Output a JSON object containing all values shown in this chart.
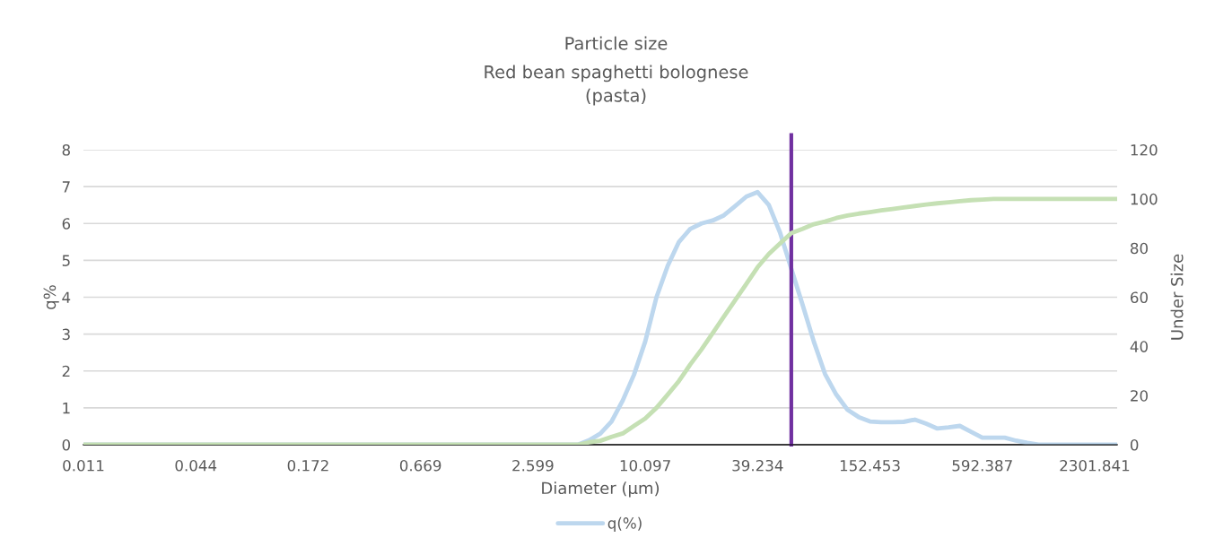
{
  "chart_data": {
    "type": "line",
    "title": "Particle size",
    "subtitle": "Red bean spaghetti bolognese\n(pasta)",
    "xlabel": "Diameter (µm)",
    "ylabel": "q%",
    "y2label": "Under Size",
    "categories": [
      "0.011",
      null,
      null,
      null,
      null,
      null,
      null,
      null,
      null,
      null,
      "0.044",
      null,
      null,
      null,
      null,
      null,
      null,
      null,
      null,
      null,
      "0.172",
      null,
      null,
      null,
      null,
      null,
      null,
      null,
      null,
      null,
      "0.669",
      null,
      null,
      null,
      null,
      null,
      null,
      null,
      null,
      null,
      "2.599",
      null,
      null,
      null,
      null,
      null,
      null,
      null,
      null,
      null,
      "10.097",
      null,
      null,
      null,
      null,
      null,
      null,
      null,
      null,
      null,
      "39.234",
      null,
      null,
      null,
      null,
      null,
      null,
      null,
      null,
      null,
      "152.453",
      null,
      null,
      null,
      null,
      null,
      null,
      null,
      null,
      null,
      "592.387",
      null,
      null,
      null,
      null,
      null,
      null,
      null,
      null,
      null,
      "2301.841",
      null,
      null
    ],
    "series": [
      {
        "axis": "y2",
        "color": "#c5e0b4",
        "values": [
          0,
          0,
          0,
          0,
          0,
          0,
          0,
          0,
          0,
          0,
          0,
          0,
          0,
          0,
          0,
          0,
          0,
          0,
          0,
          0,
          0,
          0,
          0,
          0,
          0,
          0,
          0,
          0,
          0,
          0,
          0,
          0,
          0,
          0,
          0,
          0,
          0,
          0,
          0,
          0,
          0,
          0,
          0,
          0,
          0,
          1.0,
          1.6,
          3.2,
          4.6,
          7.7,
          10.7,
          15,
          20.4,
          25.9,
          32.6,
          38.7,
          45.4,
          52.1,
          58.8,
          65.4,
          72.2,
          77.6,
          81.9,
          86.1,
          87.8,
          89.7,
          90.8,
          92.2,
          93.2,
          94.0,
          94.6,
          95.3,
          95.9,
          96.5,
          97.1,
          97.7,
          98.2,
          98.6,
          99.1,
          99.5,
          99.7,
          100,
          100,
          100,
          100,
          100,
          100,
          100,
          100,
          100,
          100,
          100,
          100
        ]
      },
      {
        "name": "q(%)",
        "color": "#bdd7ee",
        "values": [
          0,
          0,
          0,
          0,
          0,
          0,
          0,
          0,
          0,
          0,
          0,
          0,
          0,
          0,
          0,
          0,
          0,
          0,
          0,
          0,
          0,
          0,
          0,
          0,
          0,
          0,
          0,
          0,
          0,
          0,
          0,
          0,
          0,
          0,
          0,
          0,
          0,
          0,
          0,
          0,
          0,
          0,
          0,
          0,
          0,
          0.12,
          0.3,
          0.63,
          1.2,
          1.9,
          2.8,
          4.0,
          4.85,
          5.5,
          5.85,
          6.0,
          6.08,
          6.22,
          6.47,
          6.73,
          6.85,
          6.5,
          5.75,
          4.77,
          3.8,
          2.8,
          1.92,
          1.36,
          0.95,
          0.75,
          0.63,
          0.61,
          0.61,
          0.62,
          0.68,
          0.57,
          0.44,
          0.47,
          0.51,
          0.35,
          0.19,
          0.19,
          0.19,
          0.11,
          0.05,
          0,
          0,
          0,
          0,
          0,
          0,
          0,
          0
        ]
      }
    ],
    "ylim": [
      0,
      8
    ],
    "yticks": [
      0,
      1,
      2,
      3,
      4,
      5,
      6,
      7,
      8
    ],
    "y2lim": [
      0,
      120
    ],
    "y2ticks": [
      0,
      20,
      40,
      60,
      80,
      100,
      120
    ],
    "grid": "y",
    "legend": "bottom",
    "marker": "none",
    "line_style": "solid"
  }
}
